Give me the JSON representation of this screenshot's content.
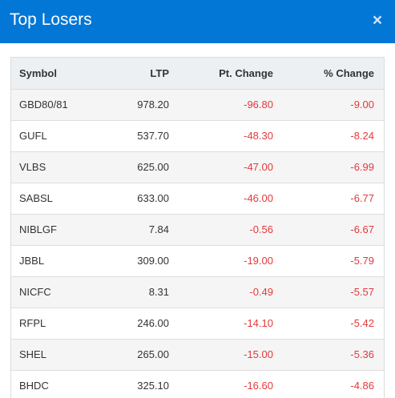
{
  "dialog": {
    "title": "Top Losers",
    "close_icon": "×"
  },
  "table": {
    "headers": {
      "symbol": "Symbol",
      "ltp": "LTP",
      "pt_change": "Pt. Change",
      "pct_change": "% Change"
    },
    "rows": [
      {
        "symbol": "GBD80/81",
        "ltp": "978.20",
        "pt_change": "-96.80",
        "pct_change": "-9.00"
      },
      {
        "symbol": "GUFL",
        "ltp": "537.70",
        "pt_change": "-48.30",
        "pct_change": "-8.24"
      },
      {
        "symbol": "VLBS",
        "ltp": "625.00",
        "pt_change": "-47.00",
        "pct_change": "-6.99"
      },
      {
        "symbol": "SABSL",
        "ltp": "633.00",
        "pt_change": "-46.00",
        "pct_change": "-6.77"
      },
      {
        "symbol": "NIBLGF",
        "ltp": "7.84",
        "pt_change": "-0.56",
        "pct_change": "-6.67"
      },
      {
        "symbol": "JBBL",
        "ltp": "309.00",
        "pt_change": "-19.00",
        "pct_change": "-5.79"
      },
      {
        "symbol": "NICFC",
        "ltp": "8.31",
        "pt_change": "-0.49",
        "pct_change": "-5.57"
      },
      {
        "symbol": "RFPL",
        "ltp": "246.00",
        "pt_change": "-14.10",
        "pct_change": "-5.42"
      },
      {
        "symbol": "SHEL",
        "ltp": "265.00",
        "pt_change": "-15.00",
        "pct_change": "-5.36"
      },
      {
        "symbol": "BHDC",
        "ltp": "325.10",
        "pt_change": "-16.60",
        "pct_change": "-4.86"
      }
    ]
  },
  "colors": {
    "header_bg": "#0277d6",
    "negative": "#e5383b",
    "table_header_bg": "#edf0f3",
    "row_alt_bg": "#f5f5f5"
  }
}
